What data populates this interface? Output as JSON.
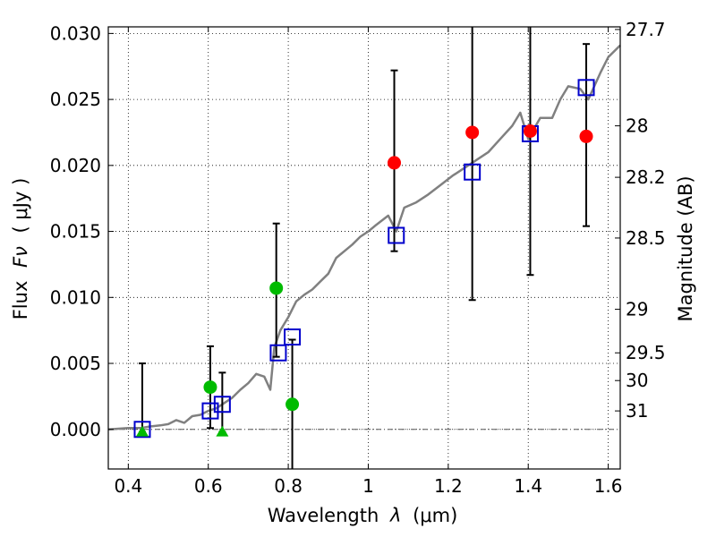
{
  "chart_data": {
    "type": "scatter",
    "xlabel_text": "Wavelength",
    "xlabel_symbol": "λ",
    "xlabel_unit": "(μm)",
    "ylabel_text": "Flux",
    "ylabel_symbol": "Fν",
    "ylabel_unit": "( μJy )",
    "y2label": "Magnitude (AB)",
    "xlim": [
      0.35,
      1.63
    ],
    "ylim": [
      -0.003,
      0.0305
    ],
    "grid": true,
    "xticks": [
      0.4,
      0.6,
      0.8,
      1.0,
      1.2,
      1.4,
      1.6
    ],
    "xtick_labels": [
      "0.4",
      "0.6",
      "0.8",
      "1",
      "1.2",
      "1.4",
      "1.6"
    ],
    "yticks": [
      0.0,
      0.005,
      0.01,
      0.015,
      0.02,
      0.025,
      0.03
    ],
    "ytick_labels": [
      "0.000",
      "0.005",
      "0.010",
      "0.015",
      "0.020",
      "0.025",
      "0.030"
    ],
    "y2ticks": [
      {
        "label": "27.7",
        "flux": 0.0303
      },
      {
        "label": "28",
        "flux": 0.023
      },
      {
        "label": "28.2",
        "flux": 0.0191
      },
      {
        "label": "28.5",
        "flux": 0.0145
      },
      {
        "label": "29",
        "flux": 0.0091
      },
      {
        "label": "29.5",
        "flux": 0.0058
      },
      {
        "label": "30",
        "flux": 0.0037
      },
      {
        "label": "31",
        "flux": 0.0014
      }
    ],
    "colors": {
      "model": "#808080",
      "blue_square": "#0000cc",
      "red_circle": "#ff0000",
      "green_circle": "#00bb00",
      "green_triangle": "#00bb00",
      "errorbar": "#000000",
      "zero_line": "#555555"
    },
    "model_spectrum": [
      [
        0.35,
        0.0
      ],
      [
        0.4,
        0.0001
      ],
      [
        0.43,
        0.0001
      ],
      [
        0.45,
        0.0002
      ],
      [
        0.48,
        0.0003
      ],
      [
        0.5,
        0.0004
      ],
      [
        0.52,
        0.0007
      ],
      [
        0.54,
        0.0005
      ],
      [
        0.56,
        0.001
      ],
      [
        0.58,
        0.0011
      ],
      [
        0.6,
        0.0014
      ],
      [
        0.62,
        0.0016
      ],
      [
        0.64,
        0.002
      ],
      [
        0.66,
        0.0024
      ],
      [
        0.68,
        0.003
      ],
      [
        0.7,
        0.0035
      ],
      [
        0.72,
        0.0042
      ],
      [
        0.74,
        0.004
      ],
      [
        0.755,
        0.003
      ],
      [
        0.765,
        0.0062
      ],
      [
        0.78,
        0.0075
      ],
      [
        0.8,
        0.0085
      ],
      [
        0.82,
        0.0097
      ],
      [
        0.84,
        0.0102
      ],
      [
        0.86,
        0.0106
      ],
      [
        0.88,
        0.0112
      ],
      [
        0.9,
        0.0118
      ],
      [
        0.92,
        0.013
      ],
      [
        0.94,
        0.0135
      ],
      [
        0.96,
        0.014
      ],
      [
        0.98,
        0.0146
      ],
      [
        1.0,
        0.015
      ],
      [
        1.02,
        0.0155
      ],
      [
        1.05,
        0.0162
      ],
      [
        1.07,
        0.015
      ],
      [
        1.09,
        0.0168
      ],
      [
        1.12,
        0.0172
      ],
      [
        1.15,
        0.0178
      ],
      [
        1.18,
        0.0185
      ],
      [
        1.21,
        0.0192
      ],
      [
        1.24,
        0.0198
      ],
      [
        1.27,
        0.0204
      ],
      [
        1.3,
        0.021
      ],
      [
        1.33,
        0.022
      ],
      [
        1.36,
        0.023
      ],
      [
        1.38,
        0.024
      ],
      [
        1.4,
        0.022
      ],
      [
        1.43,
        0.0236
      ],
      [
        1.46,
        0.0236
      ],
      [
        1.48,
        0.025
      ],
      [
        1.5,
        0.026
      ],
      [
        1.53,
        0.0258
      ],
      [
        1.55,
        0.025
      ],
      [
        1.58,
        0.027
      ],
      [
        1.6,
        0.0282
      ],
      [
        1.63,
        0.0291
      ]
    ],
    "series": [
      {
        "marker": "square",
        "points": [
          {
            "x": 0.435,
            "y": 0.0
          },
          {
            "x": 0.605,
            "y": 0.0014
          },
          {
            "x": 0.635,
            "y": 0.0019
          },
          {
            "x": 0.775,
            "y": 0.0058
          },
          {
            "x": 0.81,
            "y": 0.007
          },
          {
            "x": 1.07,
            "y": 0.0147
          },
          {
            "x": 1.26,
            "y": 0.0195
          },
          {
            "x": 1.405,
            "y": 0.0224
          },
          {
            "x": 1.545,
            "y": 0.0259
          }
        ]
      },
      {
        "marker": "circle-red",
        "points": [
          {
            "x": 1.065,
            "y": 0.0202,
            "yerr_lo": 0.0135,
            "yerr_hi": 0.0272
          },
          {
            "x": 1.26,
            "y": 0.0225,
            "yerr_lo": 0.0098,
            "yerr_hi": 0.0305
          },
          {
            "x": 1.405,
            "y": 0.0226,
            "yerr_lo": 0.0117,
            "yerr_hi": 0.0305
          },
          {
            "x": 1.545,
            "y": 0.0222,
            "yerr_lo": 0.0154,
            "yerr_hi": 0.0292
          }
        ]
      },
      {
        "marker": "circle-green",
        "points": [
          {
            "x": 0.605,
            "y": 0.0032,
            "yerr_lo": 0.0001,
            "yerr_hi": 0.0063
          },
          {
            "x": 0.77,
            "y": 0.0107,
            "yerr_lo": 0.0055,
            "yerr_hi": 0.0156
          },
          {
            "x": 0.81,
            "y": 0.0019,
            "yerr_lo": -0.003,
            "yerr_hi": 0.0068
          }
        ]
      },
      {
        "marker": "triangle-green",
        "points": [
          {
            "x": 0.435,
            "y": -0.0002,
            "yerr_lo": -0.0002,
            "yerr_hi": 0.005
          },
          {
            "x": 0.635,
            "y": -0.0002,
            "yerr_lo": -0.0002,
            "yerr_hi": 0.0043
          }
        ]
      }
    ]
  }
}
